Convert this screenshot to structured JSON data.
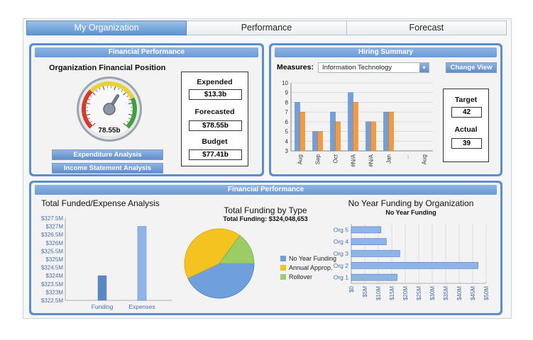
{
  "tabs": [
    "My Organization",
    "Performance",
    "Forecast"
  ],
  "financial_top": {
    "header": "Financial Performance",
    "title": "Organization Financial Position",
    "gauge_value_label": "78.55b",
    "gauge_fraction": 0.62,
    "expended_label": "Expended",
    "expended_value": "$13.3b",
    "forecasted_label": "Forecasted",
    "forecasted_value": "$78.55b",
    "budget_label": "Budget",
    "budget_value": "$77.41b",
    "btn_expenditure": "Expenditure Analysis",
    "btn_income": "Income Statement Analysis"
  },
  "hiring": {
    "header": "Hiring Summary",
    "measures_label": "Measures:",
    "measures_value": "Information Technology",
    "change_view": "Change View",
    "target_label": "Target",
    "target_value": "42",
    "actual_label": "Actual",
    "actual_value": "39"
  },
  "financial_bottom": {
    "header": "Financial Performance",
    "left_title": "Total Funded/Expense Analysis",
    "mid_title": "Total Funding by Type",
    "mid_subtitle": "Total Funding: $324,048,653",
    "right_title": "No Year Funding by Organization",
    "right_subtitle": "No Year Funding"
  },
  "colors": {
    "blue": "#6f9fdc",
    "orange": "#f39b3c",
    "yellow": "#f5c31f",
    "green": "#9ccc65"
  },
  "chart_data": [
    {
      "type": "bar",
      "categories": [
        "Aug",
        "Sep",
        "Oct",
        "#N/A",
        "#N/A",
        "Jan",
        "",
        "Aug"
      ],
      "series": [
        {
          "name": "",
          "values": [
            8,
            5,
            7,
            9,
            6,
            7,
            null,
            null
          ]
        },
        {
          "name": "",
          "values": [
            7,
            5,
            6,
            8,
            6,
            7,
            null,
            null
          ]
        }
      ],
      "ylim": [
        3,
        10
      ],
      "yticks": [
        "3",
        "4",
        "5",
        "6",
        "7",
        "8",
        "9",
        "10"
      ],
      "extra_x_labels": [
        "..."
      ],
      "grid": true
    },
    {
      "type": "bar",
      "categories": [
        "Funding",
        "Expenses"
      ],
      "values": [
        324.0,
        327.0
      ],
      "ylim": [
        322.5,
        327.5
      ],
      "yticks": [
        "$322.5M",
        "$323M",
        "$323.5M",
        "$324M",
        "$324.5M",
        "$325M",
        "$325.5M",
        "$326M",
        "$326.5M",
        "$327M",
        "$327.5M"
      ]
    },
    {
      "type": "pie",
      "title": "Total Funding by Type",
      "subtitle": "Total Funding: $324,048,653",
      "categories": [
        "No Year Funding",
        "Annual Approp.",
        "Rollover"
      ],
      "values": [
        43,
        42,
        15
      ],
      "legend_labels": [
        "No Year Funding",
        "Annual Approp.",
        "Rollover"
      ]
    },
    {
      "type": "bar",
      "orientation": "horizontal",
      "title": "No Year Funding by Organization",
      "subtitle": "No Year Funding",
      "categories": [
        "Org 5",
        "Org 4",
        "Org 3",
        "Org 2",
        "Org 1"
      ],
      "values": [
        11,
        13,
        18,
        47,
        17
      ],
      "xlim": [
        0,
        50
      ],
      "xticks": [
        "$0",
        "$5M",
        "$10M",
        "$15M",
        "$20M",
        "$25M",
        "$30M",
        "$35M",
        "$40M",
        "$45M",
        "$50M"
      ]
    }
  ]
}
